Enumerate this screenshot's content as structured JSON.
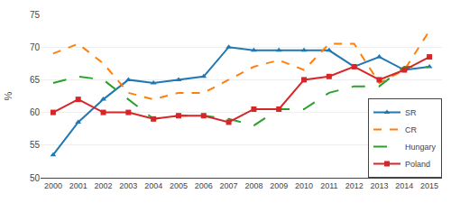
{
  "chart_data": {
    "type": "line",
    "x": [
      2000,
      2001,
      2002,
      2003,
      2004,
      2005,
      2006,
      2007,
      2008,
      2009,
      2010,
      2011,
      2012,
      2013,
      2014,
      2015
    ],
    "series": [
      {
        "name": "SR",
        "line_style": "solid",
        "marker": "triangle-up",
        "values": [
          53.5,
          58.5,
          62.0,
          65.0,
          64.5,
          65.0,
          65.5,
          70.0,
          69.5,
          69.5,
          69.5,
          69.5,
          67.0,
          68.5,
          66.5,
          67.0
        ]
      },
      {
        "name": "CR",
        "line_style": "dash",
        "marker": "none",
        "values": [
          69.0,
          70.5,
          67.5,
          63.0,
          62.0,
          63.0,
          63.0,
          65.0,
          67.0,
          68.0,
          66.5,
          70.5,
          70.5,
          64.5,
          66.5,
          72.5
        ]
      },
      {
        "name": "Hungary",
        "line_style": "longdash",
        "marker": "none",
        "values": [
          64.5,
          65.5,
          65.0,
          62.0,
          59.0,
          59.5,
          59.5,
          59.0,
          58.0,
          60.5,
          60.5,
          63.0,
          64.0,
          64.0,
          67.0,
          67.0
        ]
      },
      {
        "name": "Poland",
        "line_style": "solid",
        "marker": "square",
        "values": [
          60.0,
          62.0,
          60.0,
          60.0,
          59.0,
          59.5,
          59.5,
          58.5,
          60.5,
          60.5,
          65.0,
          65.5,
          67.0,
          65.0,
          66.5,
          68.5
        ]
      }
    ],
    "ylabel": "%",
    "xlim": [
      1999.5,
      2015.5
    ],
    "xticks": [
      2000,
      2001,
      2002,
      2003,
      2004,
      2005,
      2006,
      2007,
      2008,
      2009,
      2010,
      2011,
      2012,
      2013,
      2014,
      2015
    ],
    "ylim": [
      50,
      75
    ],
    "yticks": [
      50,
      55,
      60,
      65,
      70,
      75
    ],
    "grid": "y",
    "legend": "lower right"
  }
}
